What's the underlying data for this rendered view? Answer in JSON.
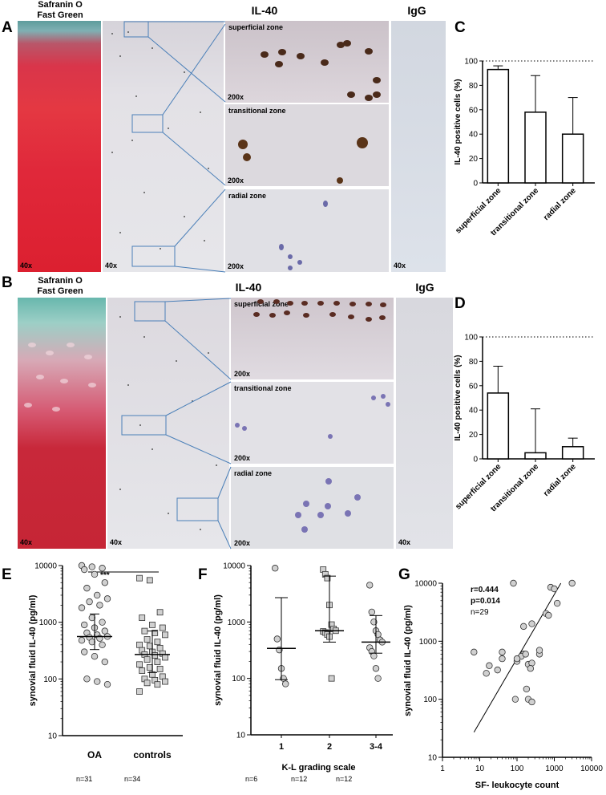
{
  "panels": {
    "A": {
      "label": "A",
      "safranin_title_1": "Safranin O",
      "safranin_title_2": "Fast Green",
      "il40_title": "IL-40",
      "igg_title": "IgG",
      "zones": [
        "superficial zone",
        "transitional zone",
        "radial zone"
      ],
      "mag_low": "40x",
      "mag_high": "200x"
    },
    "B": {
      "label": "B",
      "safranin_title_1": "Safranin O",
      "safranin_title_2": "Fast Green",
      "il40_title": "IL-40",
      "igg_title": "IgG",
      "zones": [
        "superficial zone",
        "transitional zone",
        "radial zone"
      ],
      "mag_low": "40x",
      "mag_high": "200x"
    },
    "C": {
      "label": "C"
    },
    "D": {
      "label": "D"
    },
    "E": {
      "label": "E",
      "counts": [
        "n=31",
        "n=34"
      ],
      "sig": "***"
    },
    "F": {
      "label": "F",
      "counts": [
        "n=6",
        "n=12",
        "n=12"
      ]
    },
    "G": {
      "label": "G",
      "stats": [
        "r=0.444",
        "p=0.014",
        "n=29"
      ]
    }
  },
  "chart_data": [
    {
      "id": "C",
      "type": "bar",
      "categories": [
        "superficial zone",
        "transitional zone",
        "radial zone"
      ],
      "values": [
        93,
        58,
        40
      ],
      "error_upper": [
        96,
        88,
        70
      ],
      "ylabel": "IL-40 positive cells (%)",
      "ylim": [
        0,
        100
      ],
      "yticks": [
        0,
        20,
        40,
        60,
        80,
        100
      ],
      "reference_line": 100
    },
    {
      "id": "D",
      "type": "bar",
      "categories": [
        "superficial zone",
        "transitional zone",
        "radial zone"
      ],
      "values": [
        54,
        5,
        10
      ],
      "error_upper": [
        76,
        41,
        17
      ],
      "ylabel": "IL-40 positive cells (%)",
      "ylim": [
        0,
        100
      ],
      "yticks": [
        0,
        20,
        40,
        60,
        80,
        100
      ],
      "reference_line": 100
    },
    {
      "id": "E",
      "type": "scatter",
      "log_y": true,
      "ylabel": "synovial fluid IL-40 (pg/ml)",
      "ylim": [
        10,
        10000
      ],
      "yticks": [
        10,
        100,
        1000,
        10000
      ],
      "categories": [
        "OA",
        "controls"
      ],
      "series": [
        {
          "values": [
            10000,
            9500,
            9000,
            8500,
            7000,
            5000,
            4000,
            3000,
            2600,
            2300,
            2000,
            1800,
            1200,
            1000,
            900,
            800,
            700,
            650,
            600,
            560,
            540,
            520,
            480,
            450,
            400,
            300,
            250,
            200,
            100,
            90,
            80
          ],
          "median": 560,
          "q1": 330,
          "q3": 1400,
          "marker": "circle"
        },
        {
          "values": [
            6000,
            5500,
            1500,
            1200,
            900,
            800,
            700,
            650,
            600,
            500,
            450,
            400,
            380,
            350,
            320,
            300,
            280,
            270,
            260,
            240,
            220,
            200,
            180,
            160,
            150,
            140,
            120,
            110,
            100,
            95,
            90,
            85,
            80,
            60
          ],
          "median": 270,
          "q1": 130,
          "q3": 700,
          "marker": "square"
        }
      ]
    },
    {
      "id": "F",
      "type": "scatter",
      "log_y": true,
      "ylabel": "synovial fluid IL-40 (pg/ml)",
      "xlabel": "K-L grading scale",
      "ylim": [
        10,
        10000
      ],
      "yticks": [
        10,
        100,
        1000,
        10000
      ],
      "categories": [
        "1",
        "2",
        "3-4"
      ],
      "series": [
        {
          "values": [
            9000,
            500,
            320,
            150,
            100,
            80
          ],
          "median": 340,
          "low": 95,
          "high": 2700,
          "marker": "circle"
        },
        {
          "values": [
            8500,
            7000,
            6000,
            2000,
            900,
            750,
            700,
            680,
            650,
            600,
            550,
            100
          ],
          "median": 700,
          "low": 440,
          "high": 6500,
          "marker": "square"
        },
        {
          "values": [
            4500,
            1500,
            1000,
            700,
            600,
            480,
            440,
            350,
            300,
            250,
            150,
            100
          ],
          "median": 440,
          "low": 280,
          "high": 1300,
          "marker": "circle"
        }
      ]
    },
    {
      "id": "G",
      "type": "scatter",
      "log_x": true,
      "log_y": true,
      "ylabel": "synovial fluid IL-40 (pg/ml)",
      "xlabel": "SF- leukocyte count",
      "xlim": [
        1,
        10000
      ],
      "ylim": [
        10,
        10000
      ],
      "xticks": [
        1,
        10,
        100,
        1000,
        10000
      ],
      "yticks": [
        10,
        100,
        1000,
        10000
      ],
      "points": [
        [
          80,
          10000
        ],
        [
          3000,
          10000
        ],
        [
          800,
          8500
        ],
        [
          1000,
          8000
        ],
        [
          600,
          3000
        ],
        [
          1200,
          4500
        ],
        [
          700,
          2800
        ],
        [
          150,
          1800
        ],
        [
          250,
          2000
        ],
        [
          150,
          600
        ],
        [
          40,
          650
        ],
        [
          7,
          650
        ],
        [
          40,
          500
        ],
        [
          18,
          380
        ],
        [
          30,
          320
        ],
        [
          15,
          280
        ],
        [
          200,
          400
        ],
        [
          250,
          420
        ],
        [
          130,
          550
        ],
        [
          170,
          600
        ],
        [
          100,
          450
        ],
        [
          400,
          600
        ],
        [
          90,
          100
        ],
        [
          180,
          150
        ],
        [
          200,
          100
        ],
        [
          250,
          90
        ],
        [
          400,
          700
        ],
        [
          100,
          500
        ],
        [
          230,
          340
        ]
      ],
      "fit_line": [
        [
          7,
          27
        ],
        [
          1500,
          10000
        ]
      ]
    }
  ]
}
